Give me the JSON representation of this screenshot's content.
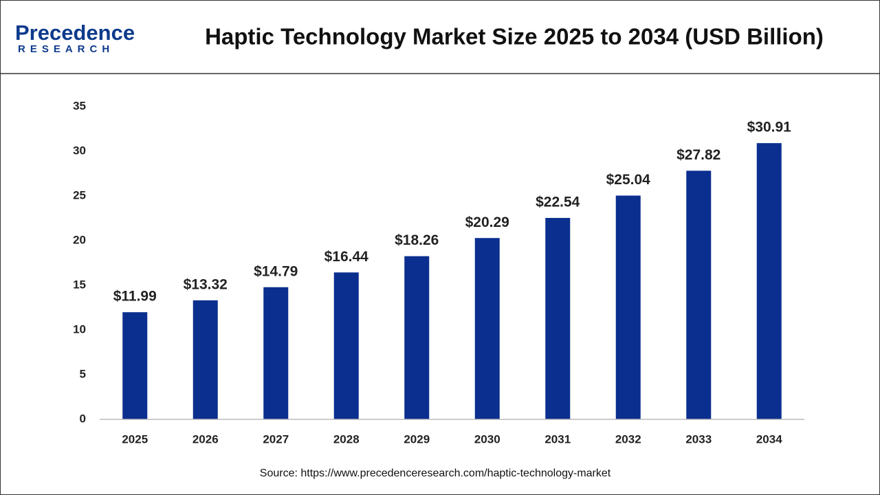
{
  "logo": {
    "name": "Precedence",
    "sub": "RESEARCH"
  },
  "chart_data": {
    "type": "bar",
    "title": "Haptic Technology Market Size 2025 to 2034 (USD Billion)",
    "categories": [
      "2025",
      "2026",
      "2027",
      "2028",
      "2029",
      "2030",
      "2031",
      "2032",
      "2033",
      "2034"
    ],
    "values": [
      11.99,
      13.32,
      14.79,
      16.44,
      18.26,
      20.29,
      22.54,
      25.04,
      27.82,
      30.91
    ],
    "value_labels": [
      "$11.99",
      "$13.32",
      "$14.79",
      "$16.44",
      "$18.26",
      "$20.29",
      "$22.54",
      "$25.04",
      "$27.82",
      "$30.91"
    ],
    "color": "#0a2f8f",
    "ylim": [
      0,
      35
    ],
    "yticks": [
      0,
      5,
      10,
      15,
      20,
      25,
      30,
      35
    ],
    "grid": false,
    "source": "Source: https://www.precedenceresearch.com/haptic-technology-market"
  }
}
